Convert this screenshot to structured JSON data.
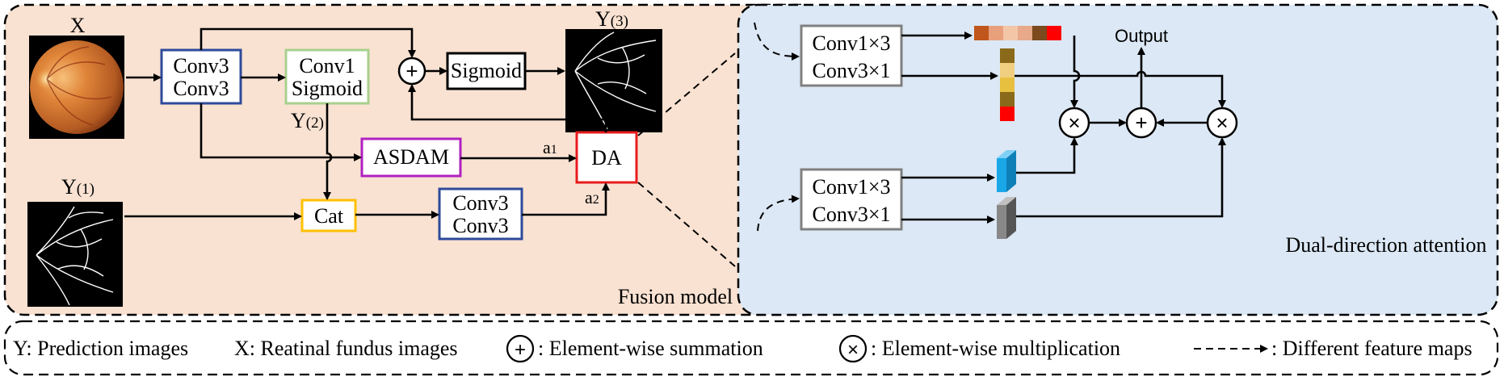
{
  "fusion_panel": {
    "caption": "Fusion model",
    "input_x_label": "X",
    "input_y1_label": "Y",
    "input_y1_sub": "(1)",
    "output_label": "Y",
    "output_sub": "(3)",
    "conv_block_top": [
      "Conv3",
      "Conv3"
    ],
    "conv1_block": [
      "Conv1",
      "Sigmoid"
    ],
    "y2_label": "Y",
    "y2_sub": "(2)",
    "sigmoid_label": "Sigmoid",
    "asdam_label": "ASDAM",
    "da_label": "DA",
    "cat_label": "Cat",
    "conv_block_bottom": [
      "Conv3",
      "Conv3"
    ],
    "a1_label": "a",
    "a1_sub": "1",
    "a2_label": "a",
    "a2_sub": "2",
    "plus_symbol": "+"
  },
  "attention_panel": {
    "caption": "Dual-direction attention",
    "top_conv": [
      "Conv1×3",
      "Conv3×1"
    ],
    "bottom_conv": [
      "Conv1×3",
      "Conv3×1"
    ],
    "output_label": "Output",
    "times_symbol": "×",
    "plus_symbol": "+"
  },
  "legend": {
    "y_text": "Y: Prediction images",
    "x_text": "X: Reatinal fundus images",
    "sum_symbol": "+",
    "sum_text": ": Element-wise summation",
    "mul_symbol": "×",
    "mul_text": ": Element-wise multiplication",
    "dashed_text": ": Different feature maps"
  },
  "colors": {
    "fusion_bg": "#f9e2d2",
    "attention_bg": "#dce8f5",
    "blue_box": "#2e4a9a",
    "green_box": "#a9d08e",
    "purple_box": "#b020c0",
    "red_box": "#e81c1c",
    "yellow_box": "#ffc000",
    "gray_box": "#808080",
    "horizontal_strip": [
      "#c0561b",
      "#e8a07c",
      "#f3c6a8",
      "#e7a98a",
      "#7b4a1e",
      "#ff0000"
    ],
    "vertical_strip": [
      "#8a6a1a",
      "#f0d080",
      "#e8c040",
      "#8a6a1a",
      "#ff0000"
    ],
    "cube_cyan": "#1aa7e8",
    "cube_gray": "#888888"
  }
}
